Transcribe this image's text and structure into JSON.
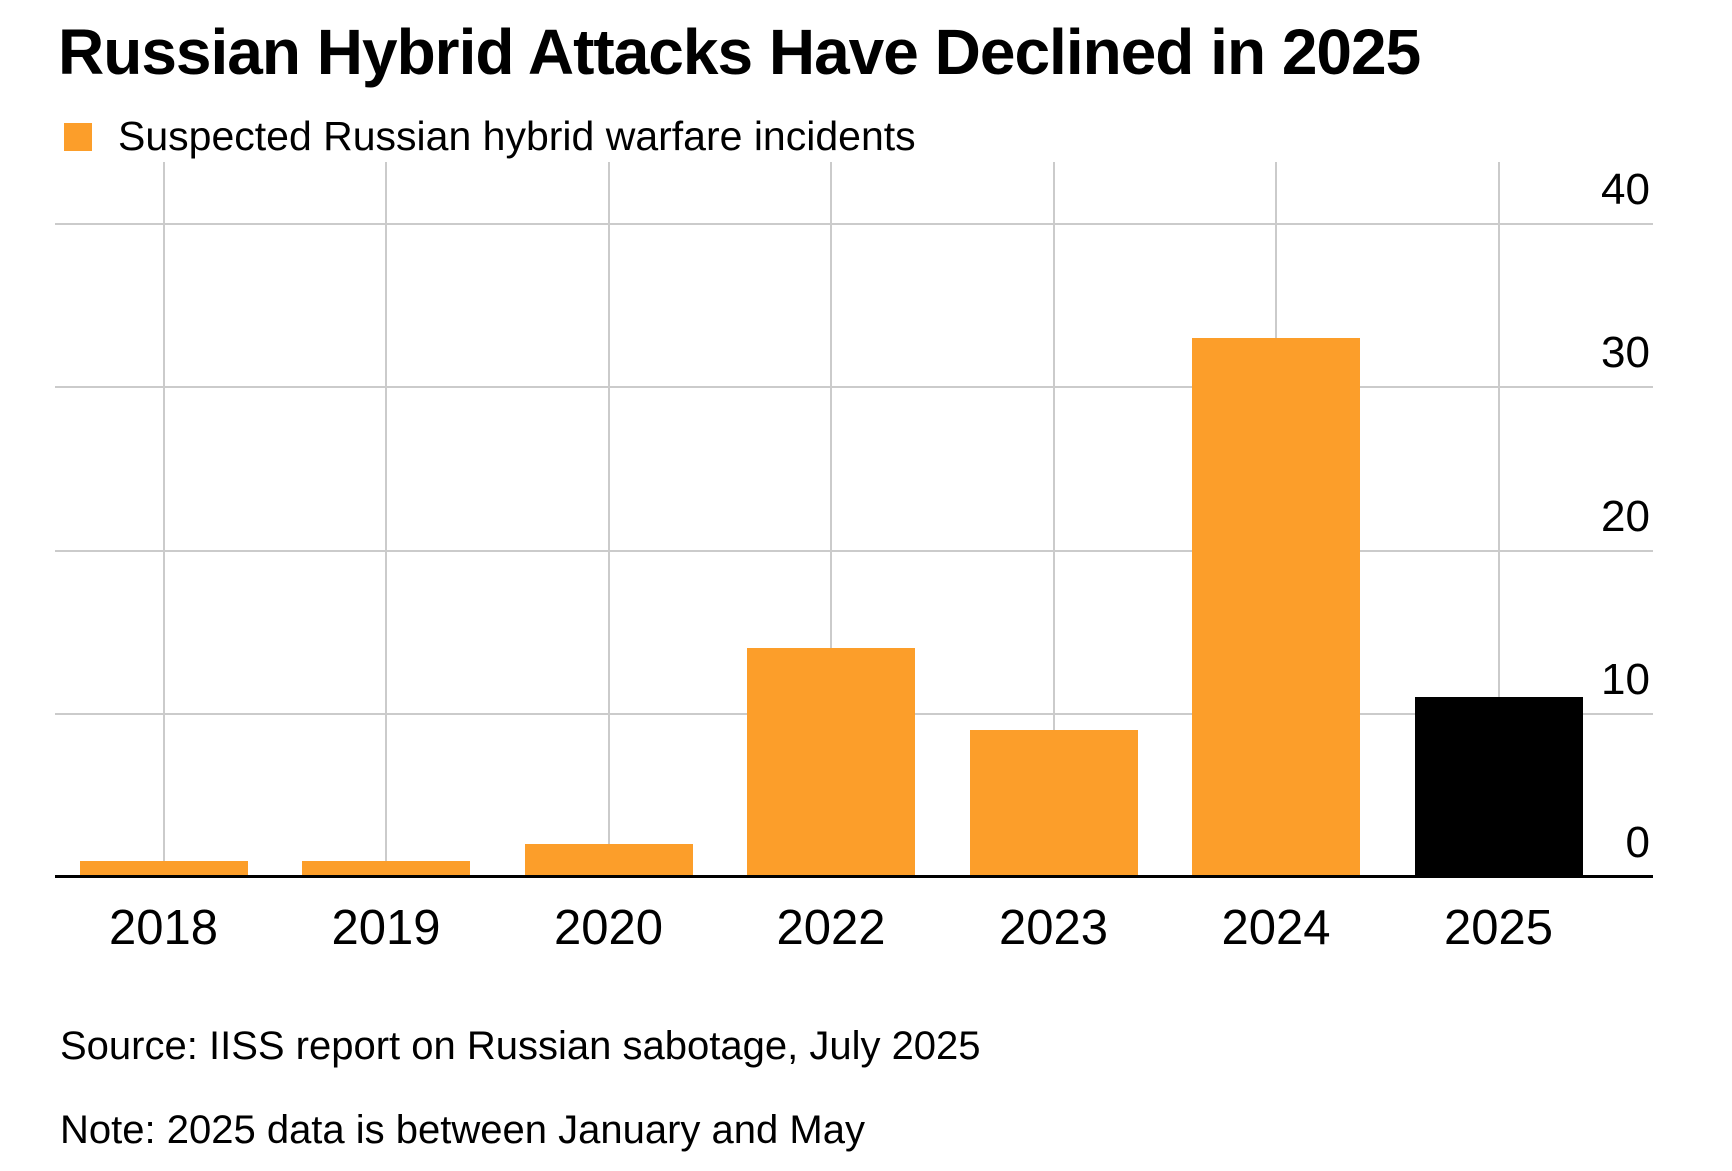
{
  "title": "Russian Hybrid Attacks Have Declined in 2025",
  "legend": {
    "label": "Suspected Russian hybrid warfare incidents",
    "swatch_color": "#FC9E2A"
  },
  "source": "Source: IISS report on Russian sabotage, July 2025",
  "note": "Note: 2025 data is between January and May",
  "colors": {
    "bar_orange": "#FC9E2A",
    "bar_highlight_black": "#000000",
    "gridline": "#CBCBCB",
    "axis_line": "#000000",
    "background": "#FFFFFF",
    "text": "#000000"
  },
  "chart_data": {
    "type": "bar",
    "title": "Russian Hybrid Attacks Have Declined in 2025",
    "legend_entries": [
      "Suspected Russian hybrid warfare incidents"
    ],
    "categories": [
      "2018",
      "2019",
      "2020",
      "2022",
      "2023",
      "2024",
      "2025"
    ],
    "values": [
      1,
      1,
      2,
      14,
      9,
      33,
      11
    ],
    "bar_colors": [
      "#FC9E2A",
      "#FC9E2A",
      "#FC9E2A",
      "#FC9E2A",
      "#FC9E2A",
      "#FC9E2A",
      "#000000"
    ],
    "xlabel": "",
    "ylabel": "",
    "y_ticks": [
      0,
      10,
      20,
      30,
      40
    ],
    "ylim": [
      0,
      44
    ],
    "grid": true,
    "y_tick_label_side": "right",
    "legend_position": "top-left"
  }
}
